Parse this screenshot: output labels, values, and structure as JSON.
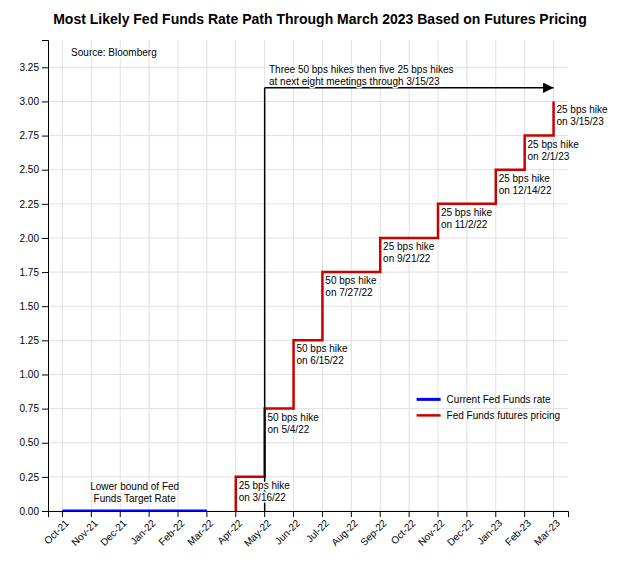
{
  "chart_data": {
    "type": "line",
    "title": "Most Likely Fed Funds Rate Path Through March 2023 Based on Futures Pricing",
    "categories": [
      "Oct-21",
      "Nov-21",
      "Dec-21",
      "Jan-22",
      "Feb-22",
      "Mar-22",
      "Apr-22",
      "May-22",
      "Jun-22",
      "Jul-22",
      "Aug-22",
      "Sep-22",
      "Oct-22",
      "Nov-22",
      "Dec-22",
      "Jan-23",
      "Feb-23",
      "Mar-23"
    ],
    "series": [
      {
        "name": "Current Fed Funds rate",
        "color": "#0000FF",
        "x": [
          "Oct-21",
          "Nov-21",
          "Dec-21",
          "Jan-22",
          "Feb-22",
          "Mar-22"
        ],
        "values": [
          0.0,
          0.0,
          0.0,
          0.0,
          0.0,
          0.0
        ]
      },
      {
        "name": "Fed Funds futures pricing",
        "color": "#CC0000",
        "x": [
          "Apr-22",
          "Apr-22",
          "May-22",
          "May-22",
          "Jun-22",
          "Jun-22",
          "Jul-22",
          "Jul-22",
          "Sep-22",
          "Sep-22",
          "Nov-22",
          "Nov-22",
          "Jan-23",
          "Jan-23",
          "Feb-23",
          "Feb-23",
          "Mar-23",
          "Mar-23"
        ],
        "values": [
          0.0,
          0.25,
          0.25,
          0.75,
          0.75,
          1.25,
          1.25,
          1.75,
          1.75,
          2.0,
          2.0,
          2.25,
          2.25,
          2.5,
          2.5,
          2.75,
          2.75,
          3.0
        ]
      }
    ],
    "ylim": [
      0.0,
      3.45
    ],
    "yticks": [
      {
        "value": 0.0,
        "label": "0.00"
      },
      {
        "value": 0.25,
        "label": "0.25"
      },
      {
        "value": 0.5,
        "label": "0.50"
      },
      {
        "value": 0.75,
        "label": "0.75"
      },
      {
        "value": 1.0,
        "label": "1.00"
      },
      {
        "value": 1.25,
        "label": "1.25"
      },
      {
        "value": 1.5,
        "label": "1.50"
      },
      {
        "value": 1.75,
        "label": "1.75"
      },
      {
        "value": 2.0,
        "label": "2.00"
      },
      {
        "value": 2.25,
        "label": "2.25"
      },
      {
        "value": 2.5,
        "label": "2.50"
      },
      {
        "value": 2.75,
        "label": "2.75"
      },
      {
        "value": 3.0,
        "label": "3.00"
      },
      {
        "value": 3.25,
        "label": "3.25"
      }
    ],
    "grid": true,
    "legend": "lower right",
    "annotations": [
      {
        "text": "Three 50 bps hikes then five 25 bps hikes\nat next eight meetings through 3/15/23",
        "x": [
          "May-22",
          "Mar-23"
        ],
        "y": 3.1,
        "marker": "arrow"
      },
      {
        "text": "Source:  Bloomberg"
      },
      {
        "text": "25 bps hike\non 3/16/22",
        "x": "Apr-22",
        "y": 0.25
      },
      {
        "text": "50 bps hike\non 5/4/22",
        "x": "May-22",
        "y": 0.75
      },
      {
        "text": "50 bps hike\non 6/15/22",
        "x": "Jun-22",
        "y": 1.25
      },
      {
        "text": "50 bps hike\non 7/27/22",
        "x": "Jul-22",
        "y": 1.75
      },
      {
        "text": "25 bps hike\non 9/21/22",
        "x": "Sep-22",
        "y": 2.0
      },
      {
        "text": "25 bps hike\non 11/2/22",
        "x": "Nov-22",
        "y": 2.25
      },
      {
        "text": "25 bps hike\non 12/14/22",
        "x": "Jan-23",
        "y": 2.5
      },
      {
        "text": "25 bps hike\non 2/1/23",
        "x": "Feb-23",
        "y": 2.75
      },
      {
        "text": "25 bps hike\non 3/15/23",
        "x": "Mar-23",
        "y": 3.0
      },
      {
        "text": "Lower bound of Fed\nFunds Target Rate",
        "x": [
          "Oct-21",
          "Mar-22"
        ],
        "y": 0.0
      }
    ]
  }
}
